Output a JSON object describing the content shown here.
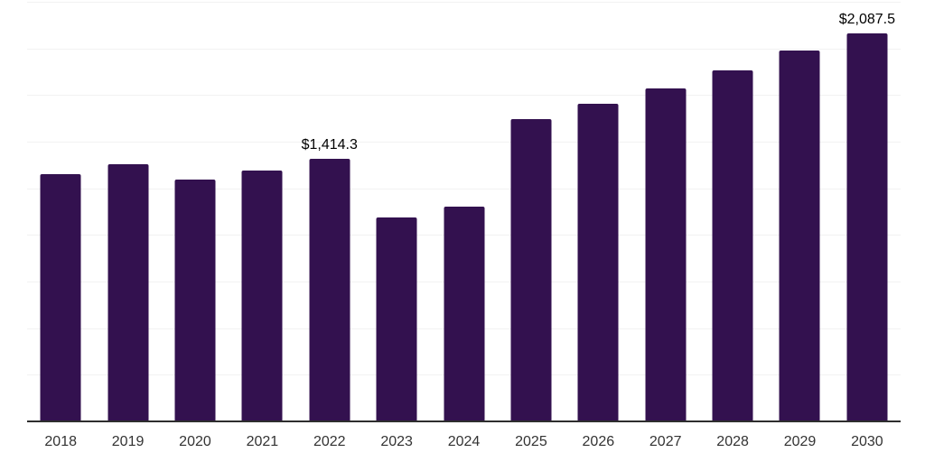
{
  "chart_data": {
    "type": "bar",
    "title": "",
    "xlabel": "",
    "ylabel": "",
    "categories": [
      "2018",
      "2019",
      "2020",
      "2021",
      "2022",
      "2023",
      "2024",
      "2025",
      "2026",
      "2027",
      "2028",
      "2029",
      "2030"
    ],
    "values": [
      1330,
      1385,
      1300,
      1350,
      1414.3,
      1100,
      1155,
      1625,
      1710,
      1790,
      1885,
      1995,
      2087.5
    ],
    "bar_labels": [
      "",
      "",
      "",
      "",
      "$1,414.3",
      "",
      "",
      "",
      "",
      "",
      "",
      "",
      "$2,087.5"
    ],
    "ylim": [
      0,
      2250
    ],
    "gridline_step": 250,
    "grid": true,
    "legend": "none",
    "colors": {
      "bar": "#33114F",
      "gridline": "#f2f2f2",
      "axis": "#2e2e2e",
      "data_label_text": "#000000",
      "tick_text": "#333333",
      "background": "#ffffff"
    }
  }
}
